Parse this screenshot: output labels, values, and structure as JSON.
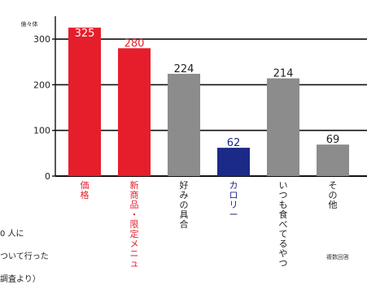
{
  "chart_data": {
    "type": "bar",
    "ylabel": "億々体",
    "ylim": [
      0,
      350
    ],
    "yticks": [
      0,
      100,
      200,
      300
    ],
    "categories": [
      "価格",
      "新商品・限定メニュー",
      "好みの具合",
      "カロリー",
      "いつも食べてるやつ",
      "その他"
    ],
    "values": [
      325,
      280,
      224,
      62,
      214,
      69
    ],
    "value_labels": [
      "325",
      "280",
      "224",
      "62",
      "214",
      "69"
    ],
    "grid": true,
    "legend": "none"
  },
  "colors": {
    "bars": [
      "#e61e2c",
      "#e61e2c",
      "#8c8c8c",
      "#1b2a86",
      "#8c8c8c",
      "#8c8c8c"
    ],
    "labels": [
      "#e61e2c",
      "#e61e2c",
      "#222222",
      "#1b2a86",
      "#222222",
      "#222222"
    ],
    "value_labels": [
      "#ffffff",
      "#e61e2c",
      "#222222",
      "#1b2a86",
      "#222222",
      "#222222"
    ]
  },
  "footnote": [
    "0 人に",
    "ついて行った",
    "調査より）"
  ],
  "multi_note": "複数回答"
}
